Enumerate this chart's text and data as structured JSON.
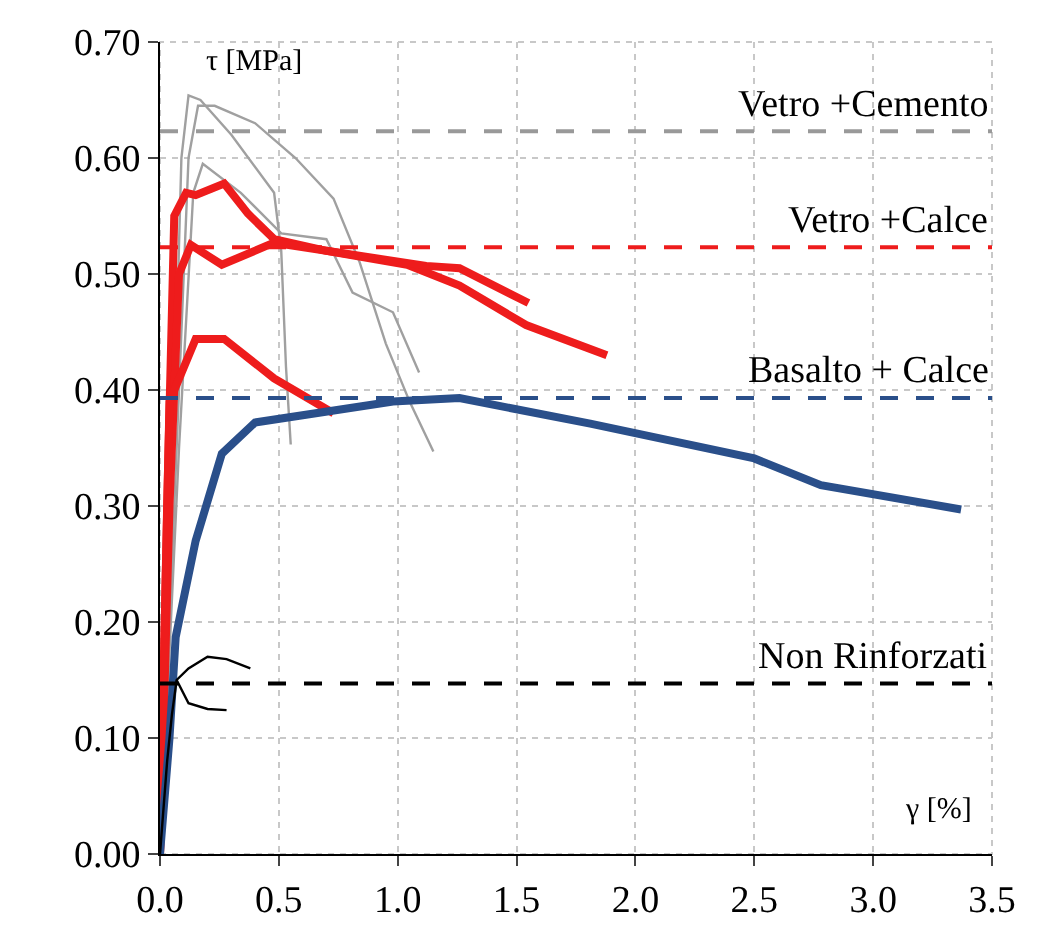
{
  "chart_data": {
    "type": "line",
    "xlabel": "γ [%]",
    "ylabel": "τ [MPa]",
    "xlim": [
      0,
      3.5
    ],
    "xticks": [
      {
        "value": 0,
        "label": "0.0"
      },
      {
        "value": 0.5,
        "label": "0.5"
      },
      {
        "value": 1,
        "label": "1.0"
      },
      {
        "value": 1.5,
        "label": "1.5"
      },
      {
        "value": 2,
        "label": "2.0"
      },
      {
        "value": 2.5,
        "label": "2.5"
      },
      {
        "value": 3,
        "label": "3.0"
      },
      {
        "value": 3.5,
        "label": "3.5"
      }
    ],
    "ylim": [
      0,
      0.7
    ],
    "yticks": [
      {
        "value": 0,
        "label": "0.00"
      },
      {
        "value": 0.1,
        "label": "0.10"
      },
      {
        "value": 0.2,
        "label": "0.20"
      },
      {
        "value": 0.3,
        "label": "0.30"
      },
      {
        "value": 0.4,
        "label": "0.40"
      },
      {
        "value": 0.5,
        "label": "0.50"
      },
      {
        "value": 0.6,
        "label": "0.60"
      },
      {
        "value": 0.7,
        "label": "0.70"
      }
    ],
    "grid": true,
    "marker": "none",
    "line_style": "solid",
    "series": [
      {
        "color": "#a0a0a0",
        "x": [
          0,
          0.05,
          0.09,
          0.12,
          0.17,
          0.3,
          0.48,
          0.51,
          0.53,
          0.55
        ],
        "values": [
          0,
          0.3,
          0.6,
          0.654,
          0.65,
          0.62,
          0.57,
          0.52,
          0.42,
          0.353
        ]
      },
      {
        "color": "#a0a0a0",
        "x": [
          0,
          0.06,
          0.12,
          0.16,
          0.23,
          0.4,
          0.57,
          0.73,
          0.84,
          0.95,
          1.05,
          1.15
        ],
        "values": [
          0,
          0.3,
          0.6,
          0.645,
          0.645,
          0.63,
          0.6,
          0.565,
          0.51,
          0.44,
          0.39,
          0.347
        ]
      },
      {
        "color": "#a0a0a0",
        "x": [
          0,
          0.08,
          0.14,
          0.18,
          0.34,
          0.51,
          0.7,
          0.81,
          0.98,
          1.09
        ],
        "values": [
          0,
          0.35,
          0.57,
          0.595,
          0.57,
          0.535,
          0.53,
          0.484,
          0.467,
          0.415
        ]
      },
      {
        "color": "#ee1c1c",
        "x": [
          0,
          0.03,
          0.06,
          0.11,
          0.15,
          0.27,
          0.37,
          0.48,
          0.7,
          1.04,
          1.26,
          1.54,
          1.88
        ],
        "values": [
          0,
          0.3,
          0.55,
          0.57,
          0.568,
          0.578,
          0.552,
          0.53,
          0.52,
          0.508,
          0.49,
          0.456,
          0.43
        ]
      },
      {
        "color": "#ee1c1c",
        "x": [
          0,
          0.04,
          0.08,
          0.13,
          0.26,
          0.48,
          0.7,
          1.12,
          1.26,
          1.55
        ],
        "values": [
          0,
          0.3,
          0.5,
          0.525,
          0.508,
          0.527,
          0.52,
          0.507,
          0.505,
          0.475
        ]
      },
      {
        "color": "#ee1c1c",
        "x": [
          0,
          0.02,
          0.04,
          0.15,
          0.27,
          0.48,
          0.73
        ],
        "values": [
          0,
          0.2,
          0.39,
          0.444,
          0.444,
          0.41,
          0.38
        ]
      },
      {
        "color": "#2a4f8a",
        "x": [
          0,
          0.04,
          0.066,
          0.15,
          0.26,
          0.4,
          0.98,
          1.26,
          1.81,
          2.5,
          2.78,
          3.37
        ],
        "values": [
          0,
          0.1,
          0.187,
          0.27,
          0.345,
          0.372,
          0.39,
          0.393,
          0.371,
          0.341,
          0.318,
          0.297
        ]
      },
      {
        "color": "#000000",
        "x": [
          0,
          0.03,
          0.05,
          0.07,
          0.12,
          0.2,
          0.28,
          0.38
        ],
        "values": [
          0,
          0.08,
          0.12,
          0.15,
          0.16,
          0.17,
          0.168,
          0.16
        ]
      },
      {
        "color": "#000000",
        "x": [
          0.07,
          0.12,
          0.2,
          0.28
        ],
        "values": [
          0.15,
          0.13,
          0.125,
          0.124
        ]
      }
    ],
    "ref_lines": [
      {
        "axis": "y",
        "value": 0.623,
        "label": "Vetro +Cemento",
        "color": "#999999",
        "line_style": "dashed"
      },
      {
        "axis": "y",
        "value": 0.523,
        "label": "Vetro +Calce",
        "color": "#ee1c1c",
        "line_style": "dashed"
      },
      {
        "axis": "y",
        "value": 0.393,
        "label": "Basalto + Calce",
        "color": "#2a4f8a",
        "line_style": "dashed"
      },
      {
        "axis": "y",
        "value": 0.147,
        "label": "Non Rinforzati",
        "color": "#000000",
        "line_style": "dashed"
      }
    ]
  }
}
